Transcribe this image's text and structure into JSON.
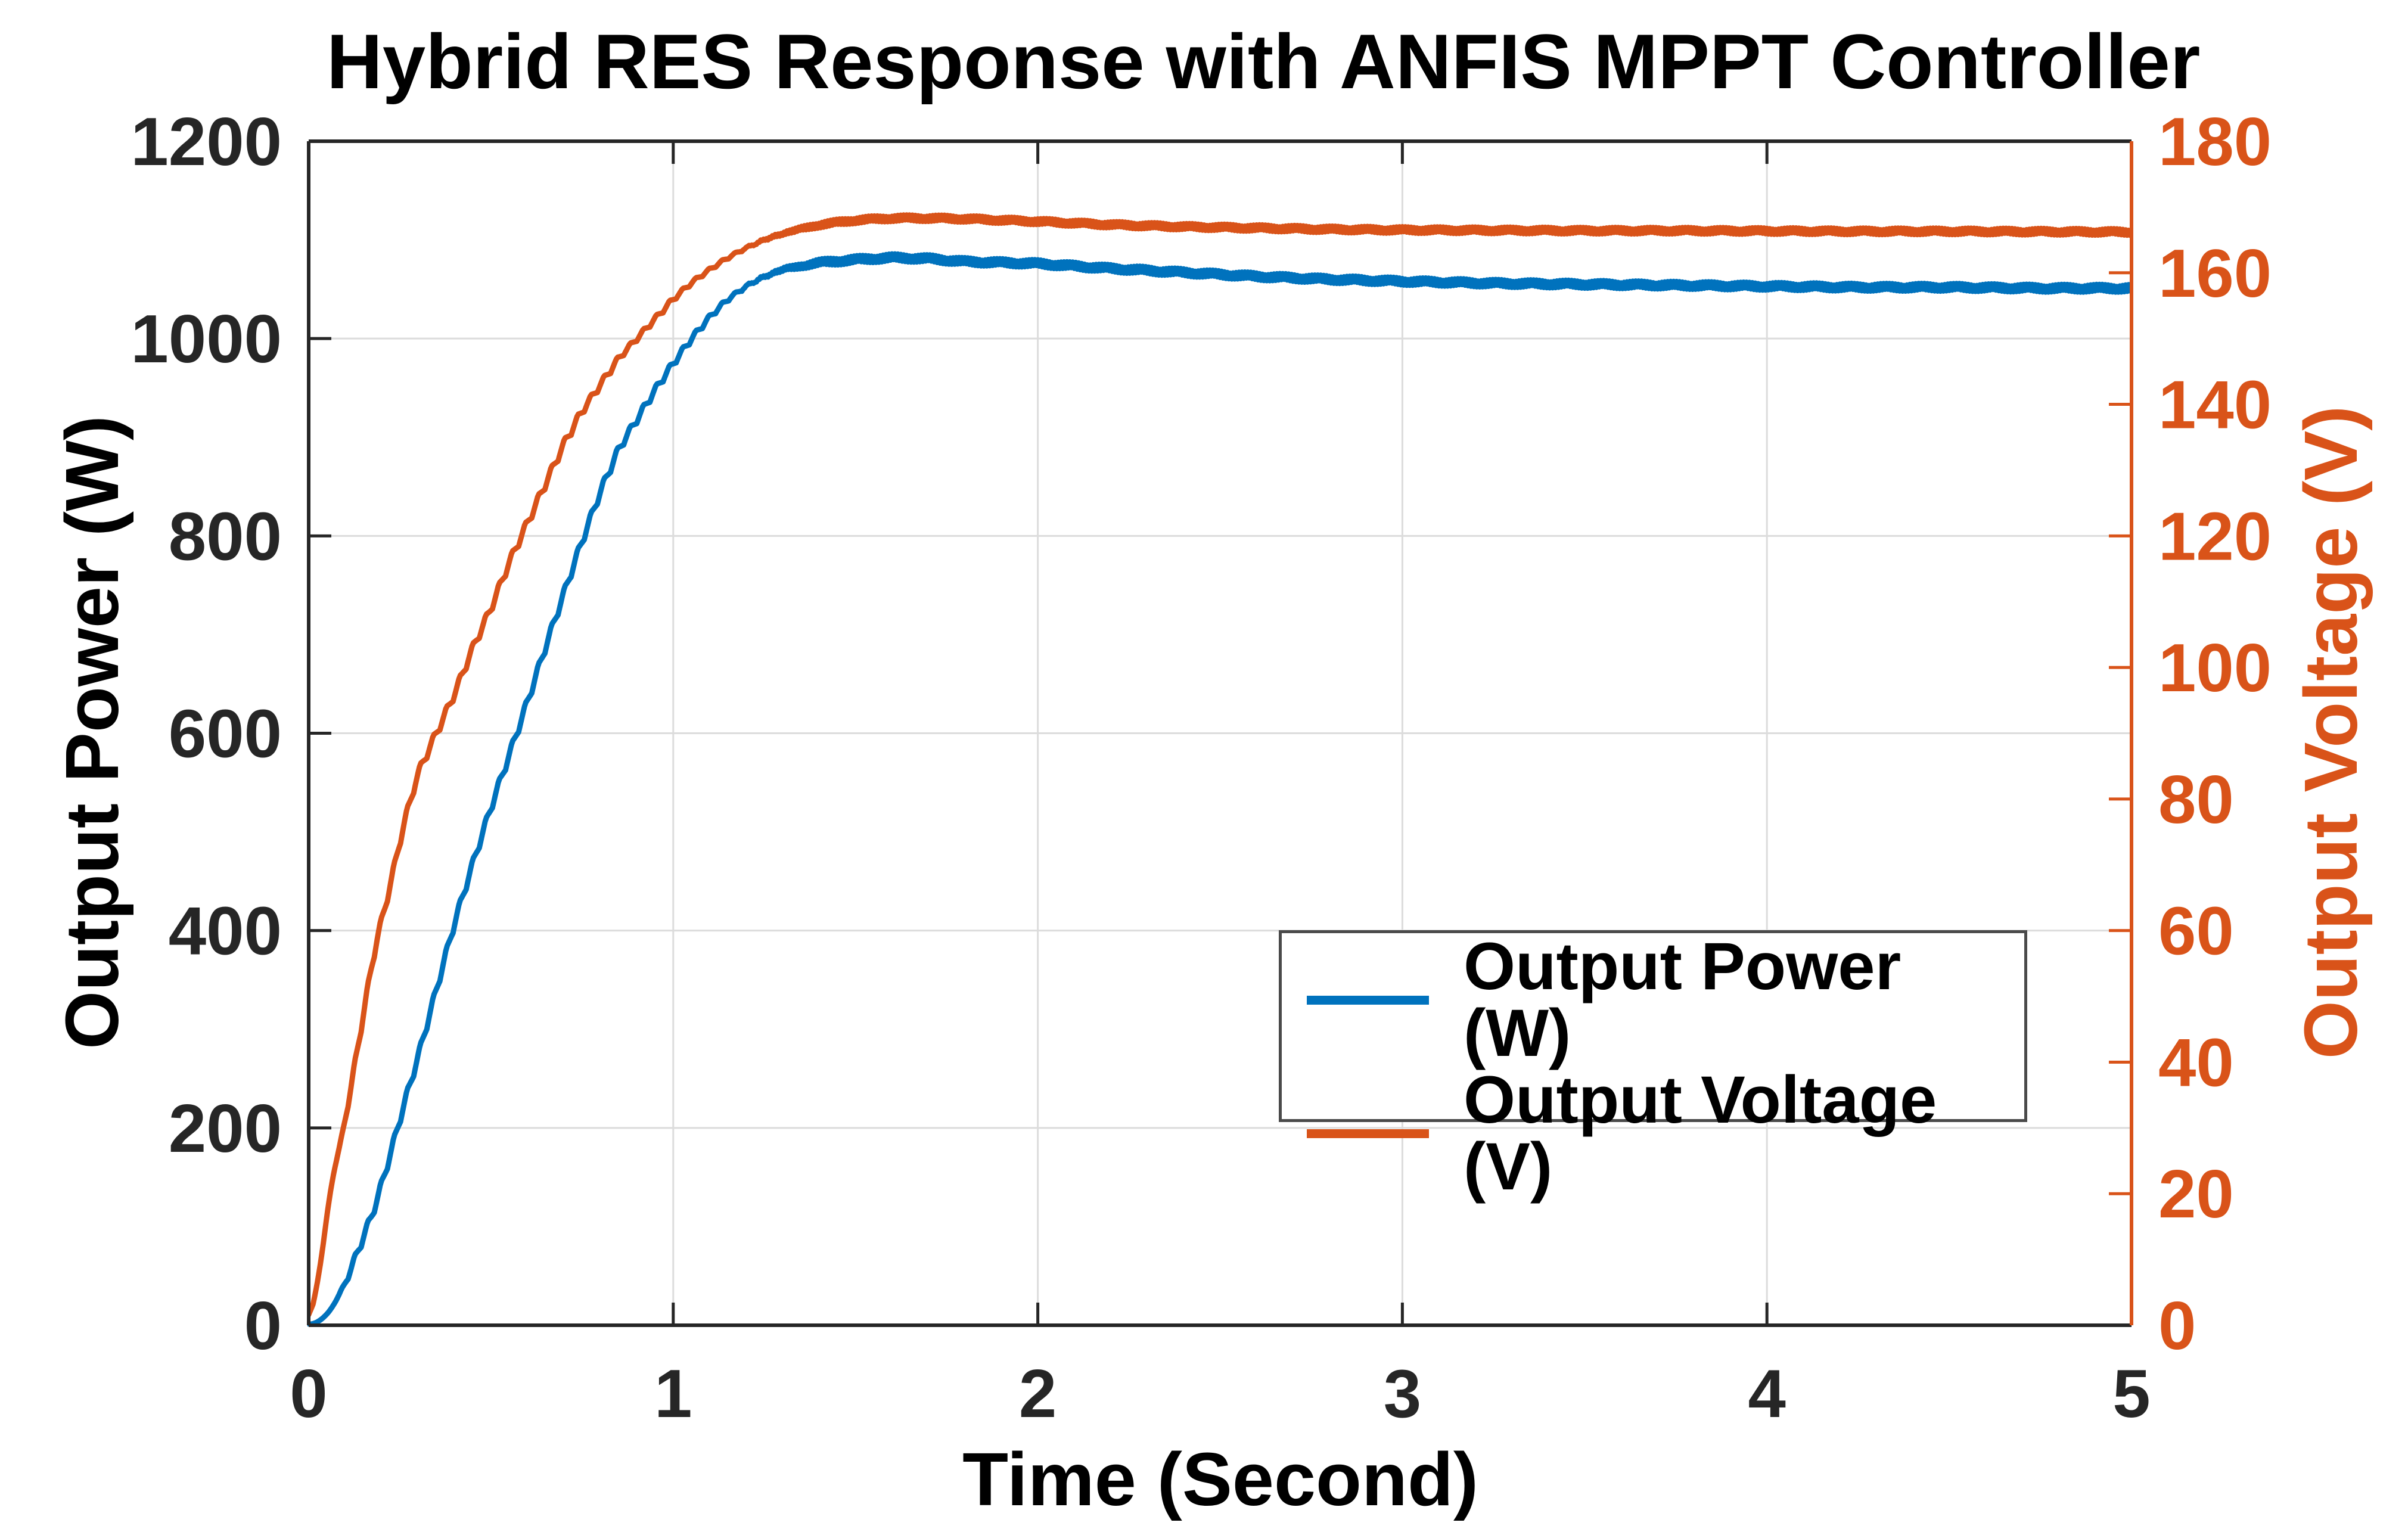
{
  "title": "Hybrid RES Response with ANFIS MPPT Controller",
  "axes": {
    "x": {
      "label": "Time (Second)"
    },
    "left": {
      "label": "Output Power (W)"
    },
    "right": {
      "label": "Output Voltage (V)"
    }
  },
  "legend": {
    "position": "inside-right-middle",
    "items": [
      {
        "label": "Output Power (W)",
        "color": "#0072BD"
      },
      {
        "label": "Output Voltage (V)",
        "color": "#D95319"
      }
    ]
  },
  "colors": {
    "power_line": "#0072BD",
    "voltage_line": "#D95319",
    "axis": "#262626",
    "right_axis": "#D95319",
    "grid": "#DCDCDC",
    "legend_border": "#4A4A4A",
    "background": "#FFFFFF"
  },
  "chart_data": {
    "type": "line",
    "title": "Hybrid RES Response with ANFIS MPPT Controller",
    "xlabel": "Time (Second)",
    "ylabel_left": "Output Power (W)",
    "ylabel_right": "Output Voltage (V)",
    "x_range": [
      0,
      5
    ],
    "left_range": [
      0,
      1200
    ],
    "right_range": [
      0,
      180
    ],
    "x_ticks": [
      0,
      1,
      2,
      3,
      4,
      5
    ],
    "left_ticks": [
      0,
      200,
      400,
      600,
      800,
      1000,
      1200
    ],
    "right_ticks": [
      0,
      20,
      40,
      60,
      80,
      100,
      120,
      140,
      160,
      180
    ],
    "grid": true,
    "legend_position": "inside-right-middle",
    "x": [
      0,
      0.03,
      0.06,
      0.1,
      0.14,
      0.18,
      0.22,
      0.26,
      0.3,
      0.35,
      0.4,
      0.45,
      0.5,
      0.55,
      0.6,
      0.65,
      0.7,
      0.75,
      0.8,
      0.85,
      0.9,
      0.95,
      1.0,
      1.05,
      1.1,
      1.15,
      1.2,
      1.25,
      1.3,
      1.4,
      1.5,
      1.6,
      1.7,
      1.8,
      1.9,
      2.0,
      2.2,
      2.4,
      2.6,
      2.8,
      3.0,
      3.25,
      3.5,
      3.75,
      4.0,
      4.25,
      4.5,
      4.75,
      5.0
    ],
    "series": [
      {
        "name": "Output Power (W)",
        "axis": "left",
        "color": "#0072BD",
        "values": [
          0,
          4,
          15,
          42,
          80,
          118,
          168,
          222,
          272,
          340,
          408,
          468,
          525,
          578,
          632,
          688,
          742,
          795,
          845,
          888,
          918,
          948,
          975,
          1000,
          1022,
          1040,
          1053,
          1063,
          1070,
          1077,
          1080,
          1082,
          1081,
          1078,
          1077,
          1076,
          1071,
          1067,
          1063,
          1060,
          1058,
          1056,
          1055,
          1054,
          1053,
          1052,
          1052,
          1051,
          1051
        ]
      },
      {
        "name": "Output Voltage (V)",
        "axis": "right",
        "color": "#D95319",
        "values": [
          0,
          8,
          21,
          31,
          44,
          57,
          66,
          76,
          84,
          90,
          96,
          103,
          109,
          116,
          122,
          128,
          134,
          139,
          143,
          147,
          150,
          153,
          156,
          158.5,
          160.5,
          162.3,
          163.8,
          165,
          166,
          167.3,
          168,
          168.3,
          168.3,
          168.2,
          168,
          167.8,
          167.3,
          167.0,
          166.8,
          166.6,
          166.5,
          166.45,
          166.4,
          166.4,
          166.35,
          166.3,
          166.3,
          166.25,
          166.2
        ]
      }
    ]
  }
}
